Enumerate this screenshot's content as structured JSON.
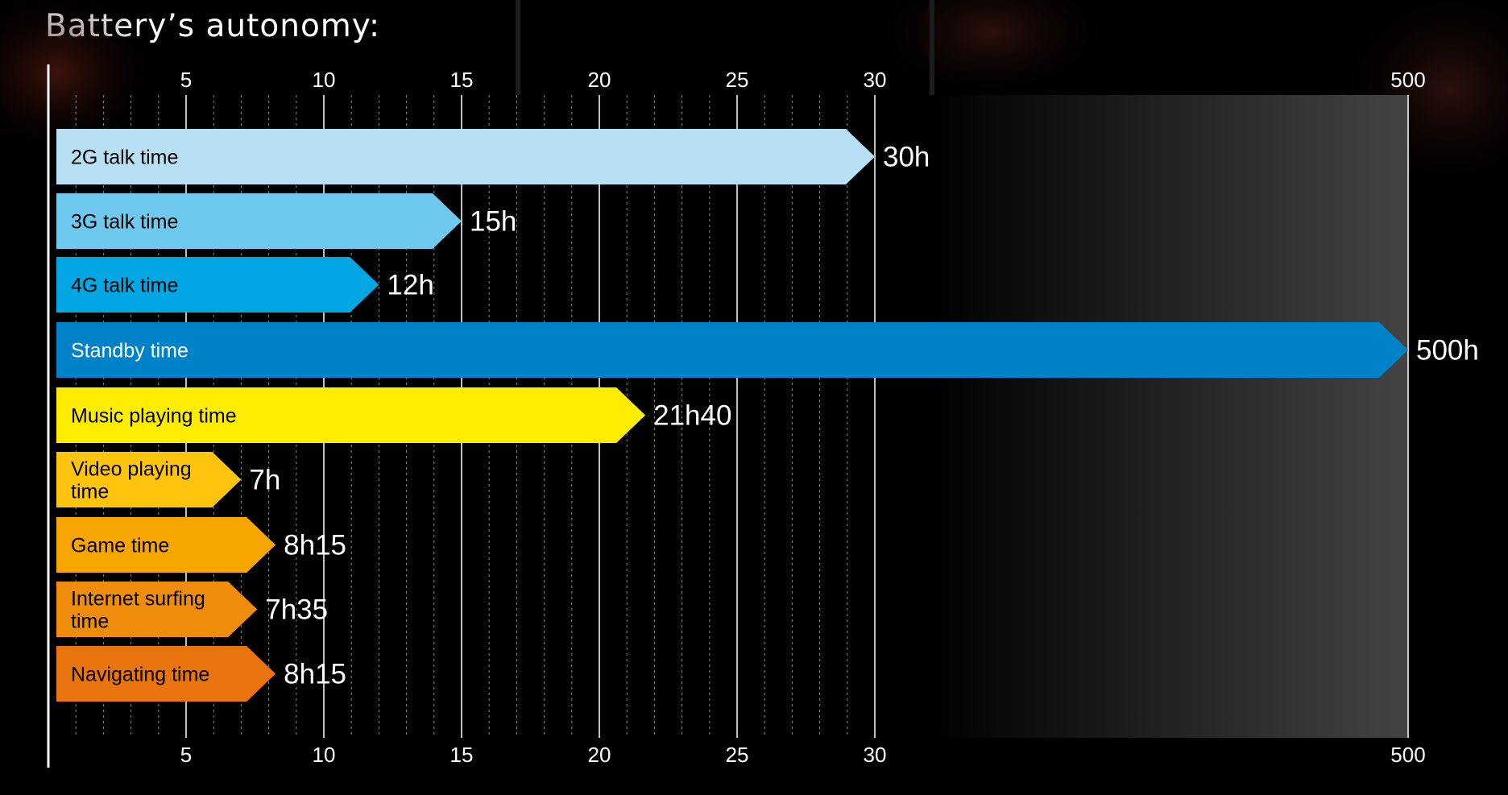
{
  "page": {
    "title": "Battery’s autonomy:"
  },
  "chart_data": {
    "type": "bar",
    "orientation": "horizontal",
    "title": "Battery’s autonomy:",
    "xlabel": "",
    "ylabel": "",
    "unit": "hours",
    "axis_breaks": "linear 0–30, broken axis jump to 500",
    "ticks": [
      "5",
      "10",
      "15",
      "20",
      "25",
      "30",
      "500"
    ],
    "tick_positions": [
      "top",
      "bottom"
    ],
    "grid": true,
    "series": [
      {
        "categories": [
          "2G talk time",
          "3G talk time",
          "4G talk time",
          "Standby time",
          "Music playing time",
          "Video playing time",
          "Game time",
          "Internet surfing time",
          "Navigating time"
        ],
        "values": [
          30,
          15,
          12,
          500,
          21.67,
          7,
          8.25,
          7.58,
          8.25
        ],
        "value_labels": [
          "30h",
          "15h",
          "12h",
          "500h",
          "21h40",
          "7h",
          "8h15",
          "7h35",
          "8h15"
        ],
        "colors": [
          "#b7e0f5",
          "#6fc9ee",
          "#00a7e3",
          "#0082c8",
          "#ffed00",
          "#ffc50e",
          "#f7a600",
          "#ee8c0c",
          "#e9730d"
        ],
        "label_colors": [
          "#000000",
          "#000000",
          "#000000",
          "#ffffff",
          "#000000",
          "#000000",
          "#000000",
          "#000000",
          "#000000"
        ]
      }
    ],
    "label_lines": [
      [
        "2G talk time"
      ],
      [
        "3G talk time"
      ],
      [
        "4G talk time"
      ],
      [
        "Standby time"
      ],
      [
        "Music playing time"
      ],
      [
        "Video playing",
        "time"
      ],
      [
        "Game time"
      ],
      [
        "Internet surfing",
        "time"
      ],
      [
        "Navigating time"
      ]
    ]
  }
}
